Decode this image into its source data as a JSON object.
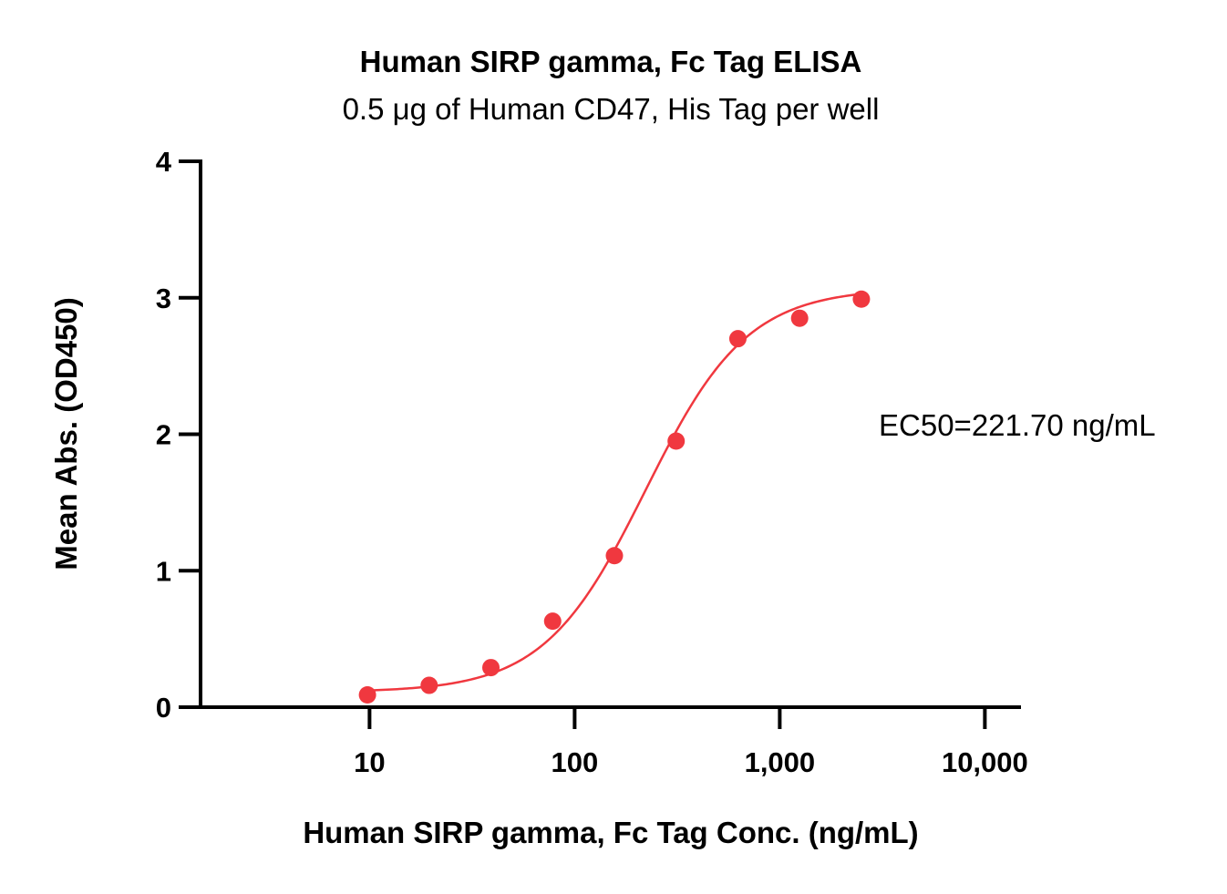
{
  "chart_data": {
    "type": "scatter",
    "title": "Human SIRP gamma, Fc Tag ELISA",
    "subtitle": "0.5 μg of Human CD47, His Tag per well",
    "xlabel": "Human SIRP gamma, Fc Tag Conc. (ng/mL)",
    "ylabel": "Mean Abs. (OD450)",
    "x_scale": "log",
    "xlim": [
      1.5,
      15000
    ],
    "ylim": [
      0,
      4
    ],
    "x_ticks": [
      10,
      100,
      1000,
      10000
    ],
    "x_tick_labels": [
      "10",
      "100",
      "1,000",
      "10,000"
    ],
    "y_ticks": [
      0,
      1,
      2,
      3,
      4
    ],
    "y_tick_labels": [
      "0",
      "1",
      "2",
      "3",
      "4"
    ],
    "grid": false,
    "series": [
      {
        "x": [
          9.77,
          19.53,
          39.06,
          78.13,
          156.25,
          312.5,
          625,
          1250,
          2500
        ],
        "y": [
          0.09,
          0.16,
          0.29,
          0.63,
          1.11,
          1.95,
          2.7,
          2.85,
          2.99
        ],
        "color": "#f0383f",
        "fit": {
          "model": "4PL",
          "bottom": 0.11,
          "top": 3.07,
          "ec50": 221.7,
          "hill": 1.75
        }
      }
    ],
    "annotations": [
      {
        "text": "EC50=221.70 ng/mL"
      }
    ]
  }
}
